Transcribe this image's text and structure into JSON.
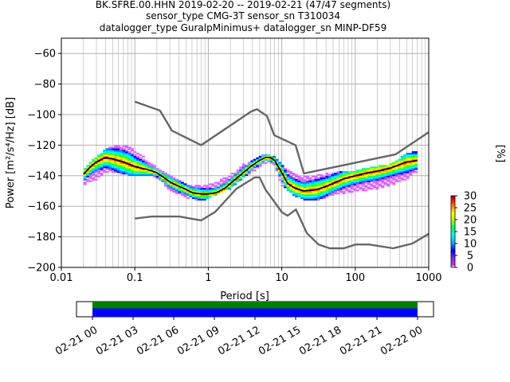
{
  "title_lines": [
    "BK.SFRE.00.HHN   2019-02-20 -- 2019-02-21  (47/47 segments)",
    "sensor_type CMG-3T sensor_sn T310034",
    "datalogger_type GuralpMinimus+ datalogger_sn MINP-DF59"
  ],
  "colors": {
    "noise_model": "#666666",
    "mode_line": "#000000",
    "grid": "#b0b0b0",
    "availability_top": "#008000",
    "availability_bottom": "#0000ff"
  },
  "chart_data": [
    {
      "type": "heatmap",
      "title": "BK.SFRE.00.HHN   2019-02-20 -- 2019-02-21  (47/47 segments)",
      "xlabel": "Period [s]",
      "ylabel": "Power [m²/s⁴/Hz] [dB]",
      "xscale": "log",
      "xlim": [
        0.01,
        1000
      ],
      "ylim": [
        -200,
        -50
      ],
      "xticks": [
        0.01,
        0.1,
        1,
        10,
        100,
        1000
      ],
      "xtick_labels": [
        "0.01",
        "0.1",
        "1",
        "10",
        "100",
        "1000"
      ],
      "yticks": [
        -200,
        -180,
        -160,
        -140,
        -120,
        -100,
        -80,
        -60
      ],
      "grid": true,
      "colorbar": {
        "label": "[%]",
        "range": [
          0,
          30
        ],
        "ticks": [
          0,
          5,
          10,
          15,
          20,
          25,
          30
        ]
      },
      "series": [
        {
          "name": "",
          "kind": "mode",
          "x": [
            0.02,
            0.025,
            0.03,
            0.04,
            0.05,
            0.07,
            0.1,
            0.15,
            0.2,
            0.3,
            0.4,
            0.5,
            0.6,
            0.8,
            1,
            1.3,
            1.7,
            2,
            3,
            4,
            5,
            6,
            7,
            8,
            10,
            12,
            15,
            20,
            30,
            40,
            50,
            70,
            100,
            150,
            200,
            300,
            500,
            700
          ],
          "y": [
            -139,
            -134,
            -131,
            -128,
            -129,
            -131,
            -134,
            -136,
            -138,
            -144,
            -147,
            -149,
            -151,
            -152,
            -152,
            -151,
            -148,
            -145,
            -138,
            -133,
            -130,
            -128,
            -128,
            -130,
            -138,
            -145,
            -148,
            -150,
            -149,
            -147,
            -145,
            -142,
            -140,
            -138,
            -137,
            -135,
            -131,
            -130
          ]
        },
        {
          "name": "",
          "kind": "new_high_noise_model",
          "x": [
            0.1,
            0.22,
            0.32,
            0.8,
            3.8,
            4.6,
            6.3,
            7.9,
            15.4,
            20,
            354.8,
            1000
          ],
          "y": [
            -91.5,
            -97.4,
            -110.5,
            -120,
            -98,
            -96.5,
            -101,
            -113.5,
            -120,
            -138.5,
            -126,
            -111.5
          ]
        },
        {
          "name": "",
          "kind": "new_low_noise_model",
          "x": [
            0.1,
            0.17,
            0.4,
            0.8,
            1.24,
            2.4,
            4.3,
            5,
            6,
            10,
            12,
            15.6,
            21.9,
            31.6,
            45,
            70,
            101,
            154,
            328,
            600,
            1000
          ],
          "y": [
            -168,
            -166.7,
            -166.7,
            -169.2,
            -163.7,
            -148.6,
            -141.1,
            -141.1,
            -149,
            -163.8,
            -166.2,
            -162.1,
            -177.5,
            -185,
            -187.5,
            -187.5,
            -185,
            -185,
            -187.5,
            -184.4,
            -178
          ]
        },
        {
          "name": "",
          "kind": "psd_spread_upper",
          "x": [
            0.02,
            0.03,
            0.04,
            0.06,
            0.08,
            0.1,
            0.15,
            0.2,
            0.3,
            0.5,
            0.8,
            1,
            2,
            3,
            5,
            6,
            8,
            10,
            15,
            20,
            30,
            50,
            100,
            200,
            300,
            500,
            700
          ],
          "y": [
            -136,
            -128,
            -123,
            -120,
            -120,
            -124,
            -130,
            -135,
            -140,
            -146,
            -147,
            -146,
            -140,
            -133,
            -128,
            -126,
            -128,
            -133,
            -139,
            -141,
            -140,
            -138,
            -137,
            -134,
            -133,
            -126,
            -124
          ]
        },
        {
          "name": "",
          "kind": "psd_spread_lower",
          "x": [
            0.02,
            0.03,
            0.04,
            0.06,
            0.08,
            0.1,
            0.15,
            0.2,
            0.3,
            0.5,
            0.8,
            1,
            2,
            3,
            5,
            6,
            8,
            10,
            15,
            20,
            30,
            50,
            100,
            200,
            300,
            500,
            700
          ],
          "y": [
            -146,
            -142,
            -138,
            -138,
            -139,
            -140,
            -139,
            -141,
            -149,
            -154,
            -156,
            -154,
            -148,
            -141,
            -134,
            -131,
            -134,
            -146,
            -153,
            -155,
            -156,
            -152,
            -150,
            -148,
            -146,
            -142,
            -137
          ]
        }
      ]
    },
    {
      "type": "bar",
      "title": "",
      "xtick_labels": [
        "02-21 00",
        "02-21 03",
        "02-21 06",
        "02-21 09",
        "02-21 12",
        "02-21 15",
        "02-21 18",
        "02-21 21",
        "02-22 00"
      ],
      "segments": [
        {
          "name": "",
          "start_hour": 0,
          "end_hour": 24
        },
        {
          "name": "",
          "start_hour": 0,
          "end_hour": 24
        }
      ]
    }
  ]
}
